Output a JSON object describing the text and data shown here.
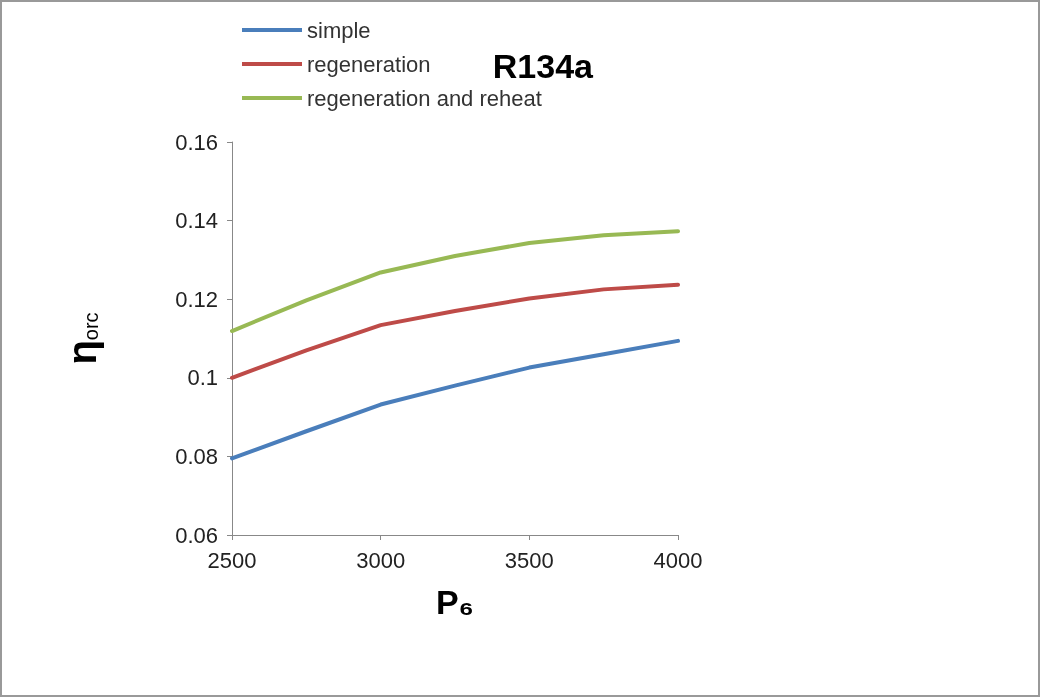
{
  "chart_data": {
    "type": "line",
    "title": "R134a",
    "xlabel": "P₆",
    "ylabel": "η$_{orc}$",
    "x": [
      2500,
      2750,
      3000,
      3250,
      3500,
      3750,
      4000
    ],
    "series": [
      {
        "name": "simple",
        "color": "#4a7ebb",
        "values": [
          0.0795,
          0.0864,
          0.0932,
          0.098,
          0.1026,
          0.106,
          0.1094
        ]
      },
      {
        "name": "regeneration",
        "color": "#be4b48",
        "values": [
          0.1,
          0.107,
          0.1134,
          0.117,
          0.1202,
          0.1225,
          0.1237
        ]
      },
      {
        "name": "regeneration and reheat",
        "color": "#98b954",
        "values": [
          0.1119,
          0.1197,
          0.1268,
          0.131,
          0.1343,
          0.1363,
          0.1373
        ]
      }
    ],
    "xlim": [
      2500,
      4000
    ],
    "xticks": [
      2500,
      3000,
      3500,
      4000
    ],
    "ylim": [
      0.06,
      0.16
    ],
    "yticks": [
      0.06,
      0.08,
      0.1,
      0.12,
      0.14,
      0.16
    ],
    "grid": false,
    "legend": "top left",
    "marker": "none",
    "line_style": "solid"
  }
}
